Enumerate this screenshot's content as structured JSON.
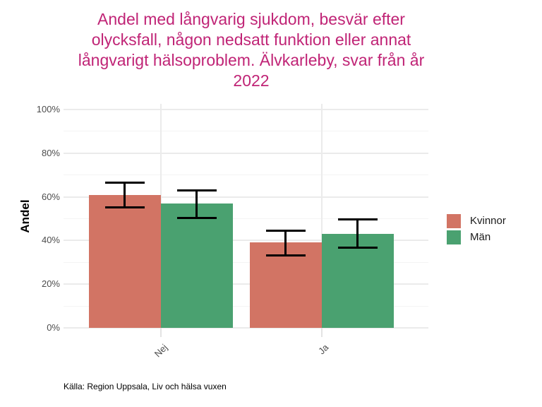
{
  "header": {
    "lines": [
      "Andel med långvarig sjukdom, besvär efter",
      "olycksfall, någon nedsatt funktion eller annat",
      "långvarigt hälsoproblem. Älvkarleby, svar från år",
      "2022"
    ]
  },
  "colors": {
    "title_accent": "#C02476",
    "axis_text": "#4D4D4D",
    "kvinnor": "#D27464",
    "man": "#4AA170"
  },
  "footer": {
    "source": "Källa: Region Uppsala, Liv och hälsa vuxen"
  },
  "chart_data": {
    "type": "bar",
    "title": "Andel med långvarig sjukdom, besvär efter olycksfall, någon nedsatt funktion eller annat långvarigt hälsoproblem. Älvkarleby, svar från år 2022",
    "xlabel": "",
    "ylabel": "Andel",
    "categories": [
      "Nej",
      "Ja"
    ],
    "series": [
      {
        "name": "Kvinnor",
        "color": "#D27464",
        "values": [
          61,
          39
        ],
        "ci_low": [
          55.3,
          33.3
        ],
        "ci_high": [
          66.5,
          44.5
        ]
      },
      {
        "name": "Män",
        "color": "#4AA170",
        "values": [
          57,
          43
        ],
        "ci_low": [
          50.3,
          36.6
        ],
        "ci_high": [
          63.1,
          49.6
        ]
      }
    ],
    "ylim": [
      0,
      100
    ],
    "y_tick_values": [
      0,
      20,
      40,
      60,
      80,
      100
    ],
    "y_tick_labels": [
      "0%",
      "20%",
      "40%",
      "60%",
      "80%",
      "100%"
    ],
    "y_minor_tick_values": [
      10,
      30,
      50,
      70,
      90
    ],
    "grid": true,
    "error_bars": true,
    "legend_position": "right"
  }
}
